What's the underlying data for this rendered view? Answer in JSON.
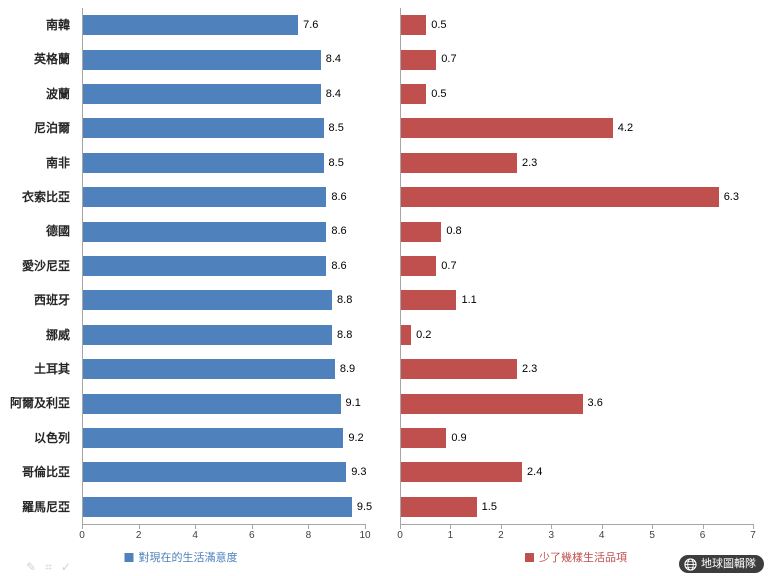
{
  "chart_data": {
    "type": "bar",
    "orientation": "horizontal",
    "grid": false,
    "legend_position": "bottom",
    "categories": [
      "南韓",
      "英格蘭",
      "波蘭",
      "尼泊爾",
      "南非",
      "衣索比亞",
      "德國",
      "愛沙尼亞",
      "西班牙",
      "挪威",
      "土耳其",
      "阿爾及利亞",
      "以色列",
      "哥倫比亞",
      "羅馬尼亞"
    ],
    "series": [
      {
        "name": "對現在的生活滿意度",
        "color": "#4F81BD",
        "values": [
          7.6,
          8.4,
          8.4,
          8.5,
          8.5,
          8.6,
          8.6,
          8.6,
          8.8,
          8.8,
          8.9,
          9.1,
          9.2,
          9.3,
          9.5
        ],
        "xlim": [
          0,
          10
        ],
        "ticks": [
          0,
          2,
          4,
          6,
          8,
          10
        ]
      },
      {
        "name": "少了幾樣生活品項",
        "color": "#C0504D",
        "values": [
          0.5,
          0.7,
          0.5,
          4.2,
          2.3,
          6.3,
          0.8,
          0.7,
          1.1,
          0.2,
          2.3,
          3.6,
          0.9,
          2.4,
          1.5
        ],
        "xlim": [
          0,
          7
        ],
        "ticks": [
          0,
          1,
          2,
          3,
          4,
          5,
          6,
          7
        ]
      }
    ]
  },
  "footer_icons": [
    {
      "name": "pencil-icon",
      "glyph": "✎"
    },
    {
      "name": "crop-icon",
      "glyph": "⌗"
    },
    {
      "name": "check-icon",
      "glyph": "✓"
    }
  ],
  "watermark": {
    "label": "地球圖輯隊"
  }
}
